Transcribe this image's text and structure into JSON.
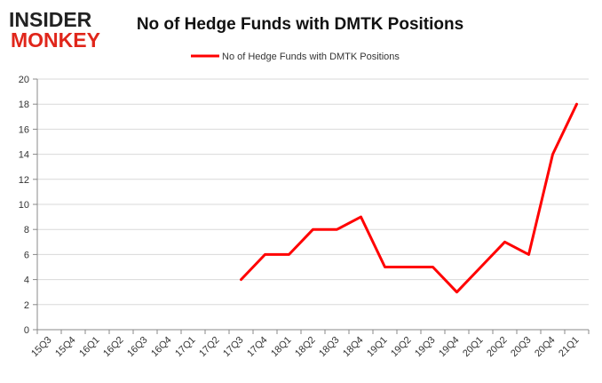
{
  "logo": {
    "line1": "INSIDER",
    "line2": "MONKEY",
    "colors": {
      "dark": "#222222",
      "red": "#e0261b"
    }
  },
  "chart_data": {
    "type": "line",
    "title": "No of Hedge Funds with DMTK Positions",
    "xlabel": "",
    "ylabel": "",
    "categories": [
      "15Q3",
      "15Q4",
      "16Q1",
      "16Q2",
      "16Q3",
      "16Q4",
      "17Q1",
      "17Q2",
      "17Q3",
      "17Q4",
      "18Q1",
      "18Q2",
      "18Q3",
      "18Q4",
      "19Q1",
      "19Q2",
      "19Q3",
      "19Q4",
      "20Q1",
      "20Q2",
      "20Q3",
      "20Q4",
      "21Q1"
    ],
    "series": [
      {
        "name": "No of Hedge Funds with DMTK Positions",
        "color": "#ff0000",
        "values": [
          null,
          null,
          null,
          null,
          null,
          null,
          null,
          null,
          4,
          6,
          6,
          8,
          8,
          9,
          5,
          5,
          5,
          3,
          5,
          7,
          6,
          14,
          18
        ]
      }
    ],
    "ylim": [
      0,
      20
    ],
    "yticks": [
      0,
      2,
      4,
      6,
      8,
      10,
      12,
      14,
      16,
      18,
      20
    ],
    "grid": {
      "y": true,
      "x": false,
      "color": "#d9d9d9"
    },
    "legend": "top-center"
  }
}
